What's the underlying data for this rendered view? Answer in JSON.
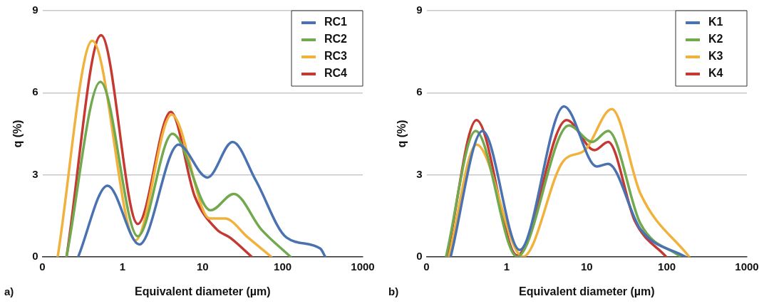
{
  "chart_data": [
    {
      "type": "line",
      "xlabel": "Equivalent diameter (µm)",
      "ylabel": "q (%)",
      "log": "x",
      "xlim": [
        0.1,
        1000
      ],
      "xticks": [
        {
          "value": 0.1,
          "label": "0"
        },
        1,
        10,
        100,
        1000
      ],
      "ylim": [
        0,
        9
      ],
      "yticks": [
        0,
        3,
        6,
        9
      ],
      "grid": "y",
      "legend": "top right",
      "marker": "none",
      "line_style": "solid",
      "annotations": [
        "a)"
      ],
      "series": [
        {
          "name": "RC1",
          "color": "#4a72b0",
          "x": [
            0.28,
            0.65,
            1.62,
            5.0,
            11.5,
            23.7,
            46,
            112,
            295,
            340
          ],
          "values": [
            0,
            2.6,
            0.45,
            4.1,
            2.9,
            4.2,
            2.8,
            0.7,
            0.3,
            0
          ]
        },
        {
          "name": "RC2",
          "color": "#72a94f",
          "x": [
            0.2,
            0.53,
            1.55,
            4.2,
            12.6,
            24.5,
            54,
            125
          ],
          "values": [
            0,
            6.4,
            0.75,
            4.5,
            1.7,
            2.3,
            1.0,
            0
          ]
        },
        {
          "name": "RC3",
          "color": "#f0b23c",
          "x": [
            0.155,
            0.42,
            1.45,
            4.1,
            12.3,
            19,
            37,
            72
          ],
          "values": [
            0,
            7.9,
            0.6,
            5.2,
            1.4,
            1.4,
            0.7,
            0
          ]
        },
        {
          "name": "RC4",
          "color": "#c43a32",
          "x": [
            0.2,
            0.54,
            1.55,
            4.0,
            8,
            15,
            22,
            41
          ],
          "values": [
            0,
            8.1,
            1.2,
            5.3,
            2.2,
            1.0,
            0.7,
            0
          ]
        }
      ]
    },
    {
      "type": "line",
      "xlabel": "Equivalent diameter (µm)",
      "ylabel": "q (%)",
      "log": "x",
      "xlim": [
        0.1,
        1000
      ],
      "xticks": [
        {
          "value": 0.1,
          "label": "0"
        },
        1,
        10,
        100,
        1000
      ],
      "ylim": [
        0,
        9
      ],
      "yticks": [
        0,
        3,
        6,
        9
      ],
      "grid": "y",
      "legend": "top right",
      "marker": "none",
      "line_style": "solid",
      "annotations": [
        "b)"
      ],
      "series": [
        {
          "name": "K1",
          "color": "#4a72b0",
          "x": [
            0.2,
            0.5,
            1.45,
            5.2,
            13.3,
            18.5,
            47,
            170
          ],
          "values": [
            0,
            4.6,
            0.25,
            5.5,
            3.3,
            3.4,
            1.0,
            0
          ]
        },
        {
          "name": "K2",
          "color": "#72a94f",
          "x": [
            0.175,
            0.41,
            1.35,
            6.0,
            11.7,
            18.5,
            47,
            148
          ],
          "values": [
            0,
            4.6,
            0,
            4.8,
            4.2,
            4.6,
            1.2,
            0
          ]
        },
        {
          "name": "K3",
          "color": "#f0b23c",
          "x": [
            0.19,
            0.42,
            1.6,
            5.1,
            9.5,
            20.5,
            47,
            190
          ],
          "values": [
            0,
            4.1,
            0,
            3.5,
            3.9,
            5.4,
            2.3,
            0
          ]
        },
        {
          "name": "K4",
          "color": "#c43a32",
          "x": [
            0.18,
            0.42,
            1.35,
            5.6,
            12.5,
            18.5,
            40,
            98
          ],
          "values": [
            0,
            5.0,
            0.05,
            5.0,
            3.9,
            4.2,
            1.3,
            0
          ]
        }
      ]
    }
  ]
}
